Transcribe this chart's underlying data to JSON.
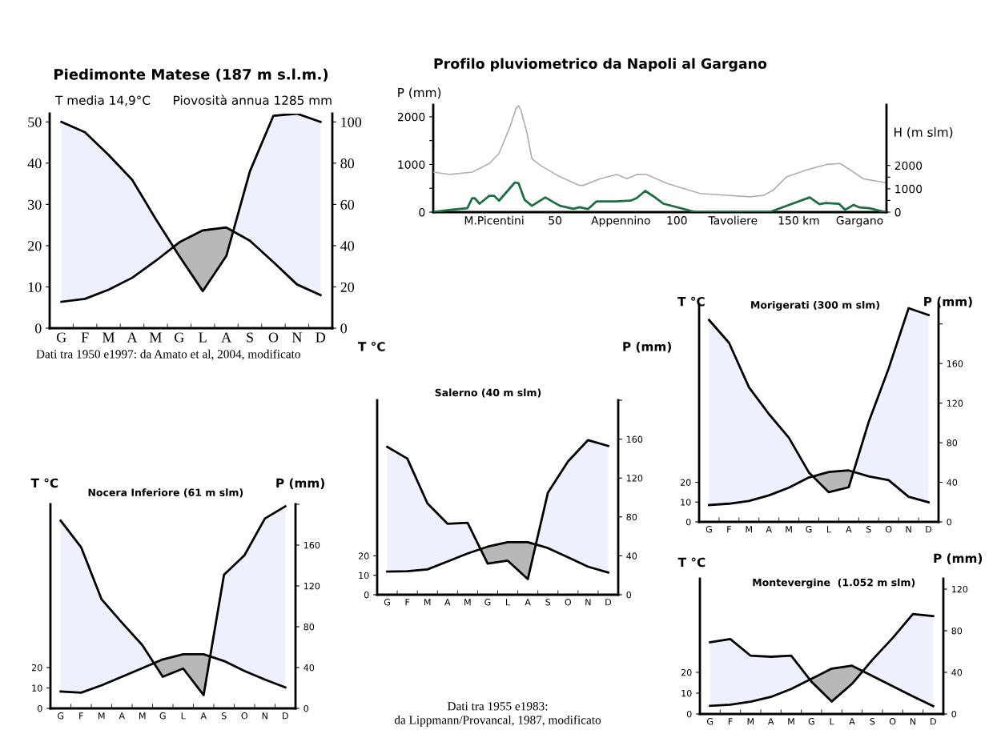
{
  "chart_data": [
    {
      "type": "line",
      "title": "Piedimonte Matese (187 m s.l.m.)",
      "categories": [
        "G",
        "F",
        "M",
        "A",
        "M",
        "G",
        "L",
        "A",
        "S",
        "O",
        "N",
        "D"
      ],
      "series": [
        {
          "color": "#000000",
          "values": [
            6.4,
            7.1,
            9.3,
            12.2,
            16.3,
            20.8,
            23.7,
            24.4,
            21.2,
            16.0,
            10.6,
            8.0
          ]
        },
        {
          "color": "#000000",
          "axis": "y2",
          "values": [
            100,
            95,
            84,
            72,
            53,
            35,
            18,
            35,
            76,
            103,
            104,
            100
          ]
        }
      ],
      "ylim": [
        0,
        52
      ],
      "yticks": [
        0,
        10,
        20,
        30,
        40,
        50
      ],
      "y2lim": [
        0,
        104
      ],
      "y2ticks": [
        0,
        20,
        40,
        60,
        80,
        100
      ],
      "annotations": [
        "T media 14,9°C",
        "Piovosità annua 1285 mm",
        "Dati tra 1950 e1997: da Amato et al, 2004, modificato"
      ]
    },
    {
      "type": "line",
      "title": "Profilo pluviometrico da Napoli al Gargano",
      "ylabel": "P (mm)",
      "y2label": "H (m slm)",
      "series": [
        {
          "color": "#b0b0b0",
          "x": [
            0,
            7,
            16,
            23,
            27,
            31.5,
            34,
            35,
            36,
            38.5,
            40.5,
            44,
            51,
            60,
            61.5,
            68.5,
            75.5,
            79.5,
            83.5,
            87.5,
            96,
            109.5,
            130,
            135.5,
            139.5,
            145,
            153.5,
            161.5,
            167,
            171,
            176.5,
            185.5
          ],
          "values": [
            840,
            790,
            840,
            1020,
            1230,
            1790,
            2180,
            2230,
            2140,
            1650,
            1120,
            980,
            770,
            560,
            560,
            700,
            790,
            700,
            790,
            790,
            600,
            390,
            320,
            350,
            460,
            740,
            890,
            1000,
            1020,
            890,
            700,
            620
          ]
        },
        {
          "color": "#1f6e43",
          "axis": "y2",
          "x": [
            0,
            7,
            14,
            16,
            17,
            19,
            23,
            25,
            27,
            33.5,
            35,
            37.5,
            40.5,
            46,
            52,
            57.5,
            60,
            63.5,
            67,
            75,
            81,
            83.5,
            87,
            90.5,
            94.5,
            105.5,
            108,
            138,
            146,
            154.5,
            158.5,
            161,
            166.5,
            169,
            172.5,
            175,
            179,
            185.5
          ],
          "values": [
            0,
            100,
            170,
            600,
            600,
            360,
            700,
            700,
            490,
            1270,
            1240,
            530,
            270,
            630,
            270,
            140,
            210,
            130,
            460,
            460,
            490,
            600,
            910,
            670,
            360,
            60,
            0,
            0,
            310,
            630,
            340,
            390,
            360,
            100,
            310,
            200,
            170,
            0
          ]
        }
      ],
      "xlim": [
        0,
        186
      ],
      "xticks": [
        {
          "value": 25,
          "label": "M.Picentini"
        },
        50,
        {
          "value": 77,
          "label": "Appennino"
        },
        100,
        {
          "value": 123,
          "label": "Tavoliere"
        },
        {
          "value": 150,
          "label": "150 km"
        },
        {
          "value": 175,
          "label": "Gargano"
        }
      ],
      "ylim": [
        0,
        2250
      ],
      "yticks": [
        0,
        {
          "value": 500,
          "label": null
        },
        1000,
        {
          "value": 1500,
          "label": null
        },
        2000
      ],
      "y2lim": [
        0,
        4600
      ],
      "y2ticks": [
        0,
        {
          "value": 500,
          "label": null
        },
        1000,
        {
          "value": 1500,
          "label": null
        },
        2000
      ]
    },
    {
      "type": "line",
      "title": "Salerno (40 m slm)",
      "ylabel": "T °C",
      "y2label": "P (mm)",
      "categories": [
        "G",
        "F",
        "M",
        "A",
        "M",
        "G",
        "L",
        "A",
        "S",
        "O",
        "N",
        "D"
      ],
      "series": [
        {
          "color": "#000000",
          "values": [
            11.9,
            12.1,
            13.0,
            17.1,
            21.2,
            24.7,
            27.0,
            27.0,
            24.0,
            19.2,
            14.4,
            11.4
          ]
        },
        {
          "color": "#000000",
          "axis": "y2",
          "values": [
            152,
            140,
            94,
            73,
            74,
            32,
            35,
            16,
            105,
            137,
            159,
            153
          ]
        }
      ],
      "ylim": [
        0,
        100
      ],
      "yticks": [
        0,
        10,
        20
      ],
      "y2lim": [
        0,
        200
      ],
      "y2ticks": [
        0,
        40,
        80,
        120,
        160,
        {
          "value": 200,
          "label": null
        }
      ],
      "annotations": [
        "Dati tra 1955 e1983:\nda Lippmann/Provancal, 1987, modificato"
      ]
    },
    {
      "type": "line",
      "title": "Nocera Inferiore (61 m slm)",
      "ylabel": "T °C",
      "y2label": "P (mm)",
      "categories": [
        "G",
        "F",
        "M",
        "A",
        "M",
        "G",
        "L",
        "A",
        "S",
        "O",
        "N",
        "D"
      ],
      "series": [
        {
          "color": "#000000",
          "values": [
            8.3,
            7.7,
            11.3,
            15.5,
            19.7,
            24.0,
            26.5,
            26.5,
            23.2,
            18.3,
            14.1,
            10.3
          ]
        },
        {
          "color": "#000000",
          "axis": "y2",
          "values": [
            184,
            158,
            107,
            84,
            62,
            31,
            39,
            13,
            131,
            150,
            186,
            198
          ]
        }
      ],
      "ylim": [
        0,
        100
      ],
      "yticks": [
        0,
        10,
        20
      ],
      "y2lim": [
        0,
        200
      ],
      "y2ticks": [
        0,
        40,
        80,
        120,
        160,
        {
          "value": 200,
          "label": null
        }
      ]
    },
    {
      "type": "line",
      "title": "Morigerati (300 m slm)",
      "ylabel": "T °C",
      "y2label": "P (mm)",
      "categories": [
        "G",
        "F",
        "M",
        "A",
        "M",
        "G",
        "L",
        "A",
        "S",
        "O",
        "N",
        "D"
      ],
      "series": [
        {
          "color": "#000000",
          "values": [
            8.5,
            9.2,
            10.6,
            13.4,
            17.3,
            22.4,
            25.2,
            26.0,
            23.0,
            21.1,
            12.7,
            9.9
          ]
        },
        {
          "color": "#000000",
          "axis": "y2",
          "values": [
            204,
            181,
            136,
            109,
            85,
            50,
            30,
            35,
            101,
            155,
            216,
            209
          ]
        }
      ],
      "ylim": [
        0,
        110
      ],
      "yticks": [
        0,
        10,
        20
      ],
      "y2lim": [
        0,
        220
      ],
      "y2ticks": [
        0,
        40,
        80,
        120,
        160,
        {
          "value": 200,
          "label": null
        }
      ]
    },
    {
      "type": "line",
      "title": "Montevergine  (1.052 m slm)",
      "ylabel": "T °C",
      "y2label": "P (mm)",
      "categories": [
        "G",
        "F",
        "M",
        "A",
        "M",
        "G",
        "L",
        "A",
        "S",
        "O",
        "N",
        "D"
      ],
      "series": [
        {
          "color": "#000000",
          "values": [
            3.9,
            4.5,
            5.9,
            8.2,
            12.0,
            16.9,
            21.8,
            23.2,
            18.3,
            13.4,
            8.5,
            3.8
          ]
        },
        {
          "color": "#000000",
          "axis": "y2",
          "values": [
            69,
            72,
            56,
            55,
            56,
            31,
            12,
            29,
            52,
            73,
            96,
            94
          ]
        }
      ],
      "ylim": [
        0,
        65
      ],
      "yticks": [
        0,
        10,
        20
      ],
      "y2lim": [
        0,
        130
      ],
      "y2ticks": [
        0,
        40,
        80,
        120
      ]
    }
  ]
}
